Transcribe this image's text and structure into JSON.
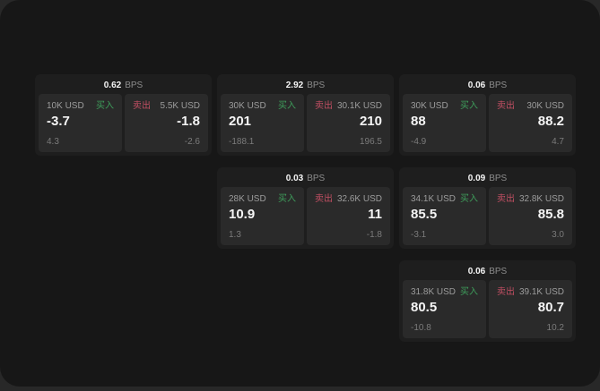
{
  "colors": {
    "buy_green": "#3e9d5b",
    "sell_red": "#c14f63",
    "panel_bg": "#171717",
    "card_bg": "#1e1e1e",
    "subpanel_bg": "#2a2a2a"
  },
  "cards": [
    {
      "bps": "0.62",
      "unit": "BPS",
      "buy_amount": "10K USD",
      "buy_label": "买入",
      "buy_price": "-3.7",
      "buy_delta": "4.3",
      "sell_label": "卖出",
      "sell_amount": "5.5K USD",
      "sell_price": "-1.8",
      "sell_delta": "-2.6"
    },
    {
      "bps": "2.92",
      "unit": "BPS",
      "buy_amount": "30K USD",
      "buy_label": "买入",
      "buy_price": "201",
      "buy_delta": "-188.1",
      "sell_label": "卖出",
      "sell_amount": "30.1K USD",
      "sell_price": "210",
      "sell_delta": "196.5"
    },
    {
      "bps": "0.06",
      "unit": "BPS",
      "buy_amount": "30K USD",
      "buy_label": "买入",
      "buy_price": "88",
      "buy_delta": "-4.9",
      "sell_label": "卖出",
      "sell_amount": "30K USD",
      "sell_price": "88.2",
      "sell_delta": "4.7"
    },
    {
      "bps": "0.03",
      "unit": "BPS",
      "buy_amount": "28K USD",
      "buy_label": "买入",
      "buy_price": "10.9",
      "buy_delta": "1.3",
      "sell_label": "卖出",
      "sell_amount": "32.6K USD",
      "sell_price": "11",
      "sell_delta": "-1.8"
    },
    {
      "bps": "0.09",
      "unit": "BPS",
      "buy_amount": "34.1K USD",
      "buy_label": "买入",
      "buy_price": "85.5",
      "buy_delta": "-3.1",
      "sell_label": "卖出",
      "sell_amount": "32.8K USD",
      "sell_price": "85.8",
      "sell_delta": "3.0"
    },
    {
      "bps": "0.06",
      "unit": "BPS",
      "buy_amount": "31.8K USD",
      "buy_label": "买入",
      "buy_price": "80.5",
      "buy_delta": "-10.8",
      "sell_label": "卖出",
      "sell_amount": "39.1K USD",
      "sell_price": "80.7",
      "sell_delta": "10.2"
    }
  ]
}
